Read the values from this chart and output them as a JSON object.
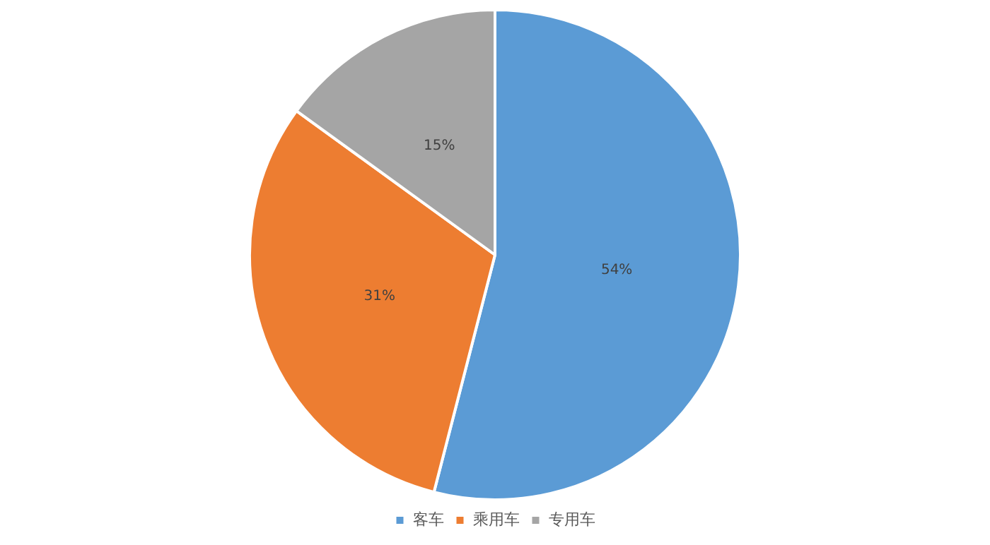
{
  "chart_data": {
    "type": "pie",
    "categories": [
      "客车",
      "乘用车",
      "专用车"
    ],
    "values": [
      54,
      31,
      15
    ],
    "colors": [
      "#5b9bd5",
      "#ed7d31",
      "#a5a5a5"
    ],
    "value_labels": [
      "54%",
      "31%",
      "15%"
    ],
    "legend": "bottom"
  }
}
